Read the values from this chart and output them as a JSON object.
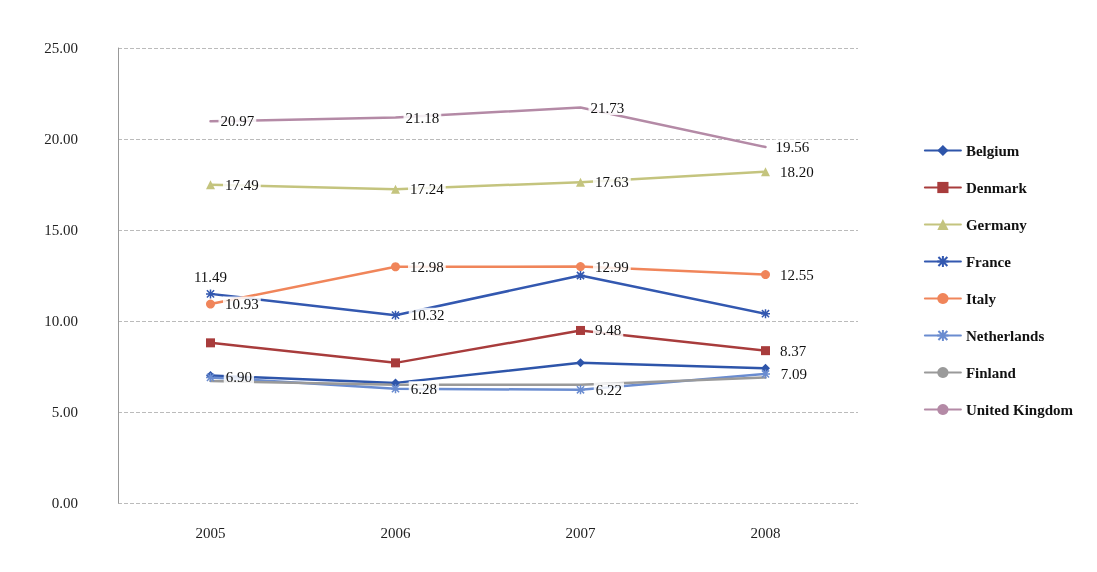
{
  "chart_data": {
    "type": "line",
    "categories": [
      "2005",
      "2006",
      "2007",
      "2008"
    ],
    "ylim": [
      0,
      25
    ],
    "yticks": [
      {
        "value": 0,
        "label": "0.00"
      },
      {
        "value": 5,
        "label": "5.00"
      },
      {
        "value": 10,
        "label": "10.00"
      },
      {
        "value": 15,
        "label": "15.00"
      },
      {
        "value": 20,
        "label": "20.00"
      },
      {
        "value": 25,
        "label": "25.00"
      }
    ],
    "grid": "y",
    "legend": "right",
    "line_style": "solid",
    "series": [
      {
        "name": "Belgium",
        "color": "#2e55aa",
        "marker": "diamond",
        "values": [
          7.0,
          6.6,
          7.7,
          7.4
        ]
      },
      {
        "name": "Denmark",
        "color": "#a83c3c",
        "marker": "square",
        "values": [
          8.8,
          7.7,
          9.48,
          8.37
        ],
        "value_labels": [
          null,
          null,
          "9.48",
          "8.37"
        ]
      },
      {
        "name": "Germany",
        "color": "#c4c47e",
        "marker": "triangle",
        "values": [
          17.49,
          17.24,
          17.63,
          18.2
        ],
        "value_labels": [
          "17.49",
          "17.24",
          "17.63",
          "18.20"
        ]
      },
      {
        "name": "France",
        "color": "#3358b0",
        "marker": "cross",
        "values": [
          11.49,
          10.32,
          12.5,
          10.4
        ],
        "value_labels": [
          "11.49",
          "10.32",
          null,
          null
        ]
      },
      {
        "name": "Italy",
        "color": "#f0855a",
        "marker": "circle",
        "values": [
          10.93,
          12.98,
          12.99,
          12.55
        ],
        "value_labels": [
          "10.93",
          "12.98",
          "12.99",
          "12.55"
        ]
      },
      {
        "name": "Netherlands",
        "color": "#6a8cd0",
        "marker": "cross",
        "values": [
          6.9,
          6.28,
          6.22,
          7.09
        ],
        "value_labels": [
          "6.90",
          "6.28",
          "6.22",
          "7.09"
        ]
      },
      {
        "name": "Finland",
        "color": "#9a9a9a",
        "marker": "none",
        "values": [
          6.7,
          6.5,
          6.5,
          6.9
        ]
      },
      {
        "name": "United Kingdom",
        "color": "#b48aa6",
        "marker": "none",
        "values": [
          20.97,
          21.18,
          21.73,
          19.56
        ],
        "value_labels": [
          "20.97",
          "21.18",
          "21.73",
          "19.56"
        ]
      }
    ]
  }
}
